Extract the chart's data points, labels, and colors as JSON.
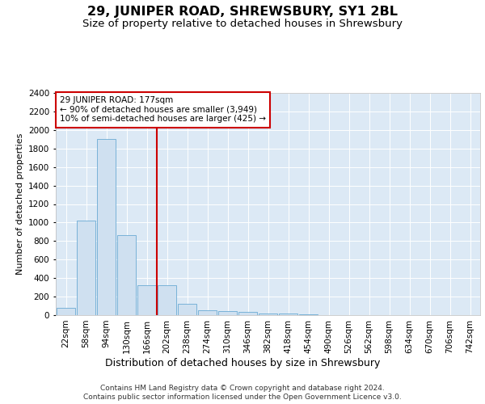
{
  "title": "29, JUNIPER ROAD, SHREWSBURY, SY1 2BL",
  "subtitle": "Size of property relative to detached houses in Shrewsbury",
  "xlabel": "Distribution of detached houses by size in Shrewsbury",
  "ylabel": "Number of detached properties",
  "bar_labels": [
    "22sqm",
    "58sqm",
    "94sqm",
    "130sqm",
    "166sqm",
    "202sqm",
    "238sqm",
    "274sqm",
    "310sqm",
    "346sqm",
    "382sqm",
    "418sqm",
    "454sqm",
    "490sqm",
    "526sqm",
    "562sqm",
    "598sqm",
    "634sqm",
    "670sqm",
    "706sqm",
    "742sqm"
  ],
  "bar_values": [
    80,
    1020,
    1900,
    860,
    320,
    320,
    120,
    55,
    45,
    35,
    20,
    15,
    5,
    2,
    1,
    1,
    0,
    0,
    0,
    0,
    0
  ],
  "bar_color": "#cfe0f0",
  "bar_edge_color": "#6aaad4",
  "highlight_line_color": "#cc0000",
  "annotation_text": "29 JUNIPER ROAD: 177sqm\n← 90% of detached houses are smaller (3,949)\n10% of semi-detached houses are larger (425) →",
  "annotation_box_color": "#ffffff",
  "annotation_box_edge": "#cc0000",
  "ylim": [
    0,
    2400
  ],
  "yticks": [
    0,
    200,
    400,
    600,
    800,
    1000,
    1200,
    1400,
    1600,
    1800,
    2000,
    2200,
    2400
  ],
  "background_color": "#dce9f5",
  "footer_line1": "Contains HM Land Registry data © Crown copyright and database right 2024.",
  "footer_line2": "Contains public sector information licensed under the Open Government Licence v3.0.",
  "title_fontsize": 11.5,
  "subtitle_fontsize": 9.5,
  "xlabel_fontsize": 9,
  "ylabel_fontsize": 8,
  "tick_fontsize": 7.5,
  "annot_fontsize": 7.5,
  "footer_fontsize": 6.5
}
